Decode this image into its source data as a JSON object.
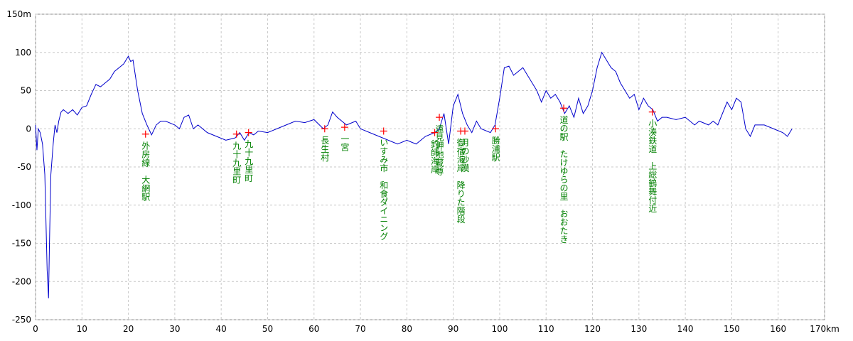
{
  "chart_data": {
    "type": "line",
    "color": "#0000cc",
    "marker_color": "#ff0000",
    "label_color": "#008000",
    "grid": true,
    "xlim": [
      0,
      170
    ],
    "ylim": [
      -250,
      150
    ],
    "xticks": [
      0,
      10,
      20,
      30,
      40,
      50,
      60,
      70,
      80,
      90,
      100,
      110,
      120,
      130,
      140,
      150,
      160,
      {
        "value": 170,
        "label": "170km"
      }
    ],
    "yticks": [
      {
        "value": 150,
        "label": "150m"
      },
      100,
      50,
      0,
      -50,
      -100,
      -150,
      -200,
      -250
    ],
    "x": [
      0,
      0.3,
      0.6,
      1,
      1.5,
      2,
      2.5,
      2.8,
      3,
      3.3,
      3.8,
      4.2,
      4.6,
      5,
      5.5,
      6,
      7,
      8,
      9,
      10,
      11,
      12,
      13,
      14,
      15,
      16,
      17,
      18,
      19,
      20,
      20.5,
      21,
      22,
      23,
      24,
      25,
      26,
      27,
      28,
      30,
      31,
      32,
      33,
      34,
      35,
      37,
      39,
      41,
      43,
      44,
      45,
      46,
      47,
      48,
      50,
      52,
      54,
      56,
      58,
      60,
      62,
      63,
      64,
      65,
      67,
      69,
      70,
      72,
      74,
      76,
      78,
      80,
      82,
      84,
      86,
      87,
      88,
      89,
      90,
      91,
      92,
      93,
      94,
      95,
      96,
      98,
      99,
      100,
      101,
      102,
      103,
      104,
      105,
      106,
      107,
      108,
      109,
      110,
      111,
      112,
      113,
      114,
      115,
      116,
      117,
      118,
      119,
      120,
      121,
      122,
      123,
      124,
      125,
      126,
      127,
      128,
      129,
      130,
      131,
      132,
      133,
      134,
      135,
      136,
      138,
      140,
      142,
      143,
      145,
      146,
      147,
      148,
      149,
      150,
      151,
      152,
      153,
      154,
      155,
      157,
      159,
      161,
      162,
      163
    ],
    "values": [
      5,
      -28,
      0,
      -5,
      -20,
      -60,
      -185,
      -222,
      -150,
      -60,
      -20,
      5,
      -5,
      10,
      22,
      25,
      20,
      25,
      18,
      28,
      30,
      45,
      58,
      55,
      60,
      65,
      75,
      80,
      85,
      95,
      88,
      90,
      50,
      20,
      5,
      -8,
      5,
      10,
      10,
      5,
      0,
      15,
      18,
      0,
      5,
      -5,
      -10,
      -15,
      -12,
      -5,
      -15,
      -5,
      -8,
      -3,
      -5,
      0,
      5,
      10,
      8,
      12,
      0,
      5,
      22,
      15,
      5,
      10,
      0,
      -5,
      -10,
      -15,
      -20,
      -15,
      -20,
      -10,
      -5,
      0,
      20,
      -20,
      30,
      45,
      20,
      5,
      -5,
      10,
      0,
      -5,
      5,
      40,
      80,
      82,
      70,
      75,
      80,
      70,
      60,
      50,
      35,
      50,
      40,
      45,
      35,
      20,
      30,
      15,
      40,
      20,
      30,
      50,
      80,
      100,
      90,
      80,
      75,
      60,
      50,
      40,
      45,
      25,
      40,
      30,
      25,
      10,
      15,
      15,
      12,
      15,
      5,
      10,
      5,
      10,
      5,
      20,
      35,
      25,
      40,
      35,
      0,
      -10,
      5,
      5,
      0,
      -5,
      -10,
      0
    ],
    "markers": [
      {
        "x": 23.7,
        "y": -7,
        "label": "外房線　大網駅"
      },
      {
        "x": 43.3,
        "y": -7,
        "label": "九十九里町"
      },
      {
        "x": 45.9,
        "y": -5,
        "label": "九十九里町"
      },
      {
        "x": 62.3,
        "y": 0,
        "label": "長生村"
      },
      {
        "x": 66.6,
        "y": 2,
        "label": "一宮"
      },
      {
        "x": 75.0,
        "y": -3,
        "label": "いすみ市　和食ダイニング"
      },
      {
        "x": 86.0,
        "y": -5,
        "label": "釣師海岸"
      },
      {
        "x": 87.0,
        "y": 15,
        "label": "遠見岬地蔵尊"
      },
      {
        "x": 91.6,
        "y": -3,
        "label": "御宿海岸　降りた階段"
      },
      {
        "x": 92.5,
        "y": -3,
        "label": "月の沙漠"
      },
      {
        "x": 99.1,
        "y": 0,
        "label": "勝浦駅"
      },
      {
        "x": 113.8,
        "y": 27,
        "label": "道の駅　たけゆらの里　おおたき"
      },
      {
        "x": 132.9,
        "y": 22,
        "label": "小湊鉄道　上総鶴舞付近"
      }
    ]
  }
}
